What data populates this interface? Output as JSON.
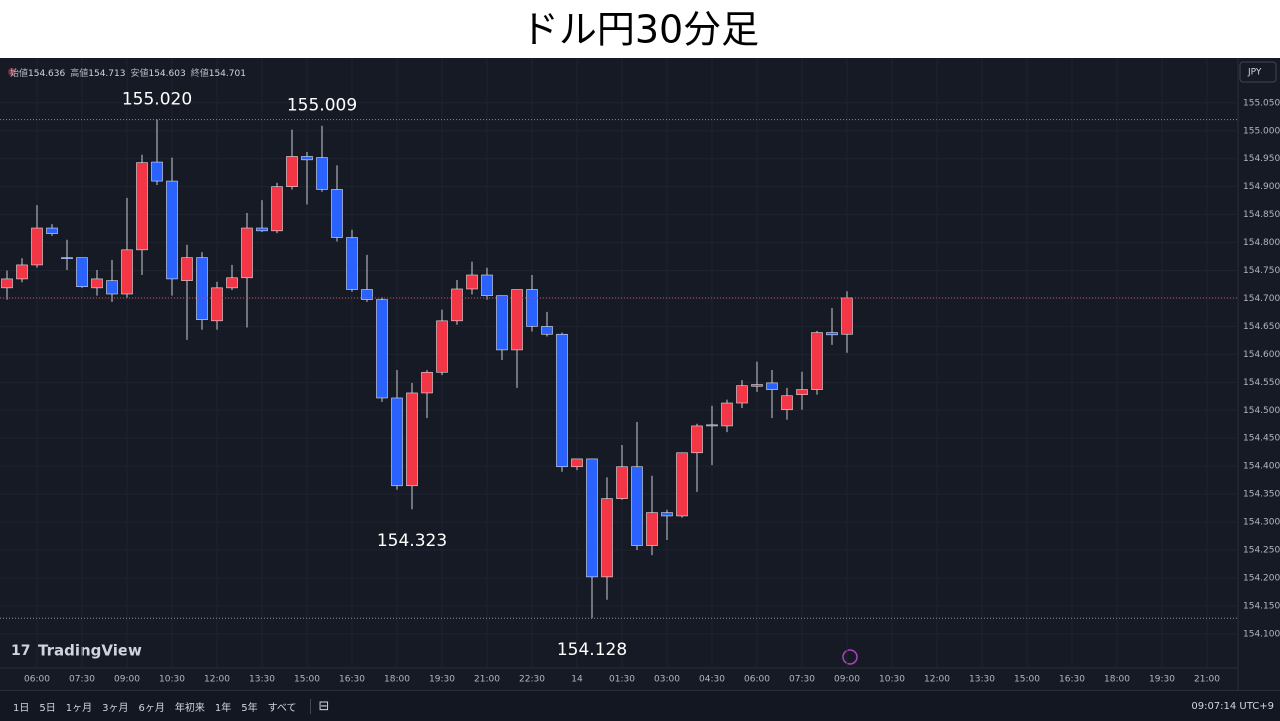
{
  "header": {
    "title": "ドル円30分足"
  },
  "chart_data": {
    "type": "candlestick",
    "ohlc_legend": [
      {
        "label": "始値",
        "value": 154.636
      },
      {
        "label": "高値",
        "value": 154.713
      },
      {
        "label": "安値",
        "value": 154.603
      },
      {
        "label": "終値",
        "value": 154.701
      }
    ],
    "currency": "JPY",
    "categories": [
      null,
      null,
      "06:00",
      null,
      null,
      "07:30",
      null,
      null,
      "09:00",
      null,
      null,
      "10:30",
      null,
      null,
      "12:00",
      null,
      null,
      "13:30",
      null,
      null,
      "15:00",
      null,
      null,
      "16:30",
      null,
      null,
      "18:00",
      null,
      null,
      "19:30",
      null,
      null,
      "21:00",
      null,
      null,
      "22:30",
      null,
      null,
      "14",
      null,
      null,
      "01:30",
      null,
      null,
      "03:00",
      null,
      null,
      "04:30",
      null,
      null,
      "06:00",
      null,
      null,
      "07:30",
      null,
      null,
      "09:00",
      null,
      null,
      "10:30",
      null,
      null,
      "12:00",
      null,
      null,
      "13:30",
      null,
      null,
      "15:00",
      null,
      null,
      "16:30",
      null,
      null,
      "18:00",
      null,
      null,
      "19:30",
      null,
      null,
      "21:00"
    ],
    "open": [
      154.719,
      154.735,
      154.76,
      154.826,
      154.773,
      154.773,
      154.719,
      154.732,
      154.708,
      154.787,
      154.944,
      154.91,
      154.732,
      154.773,
      154.66,
      154.719,
      154.737,
      154.826,
      154.821,
      154.9,
      154.954,
      154.952,
      154.895,
      154.809,
      154.716,
      154.698,
      154.522,
      154.365,
      154.531,
      154.568,
      154.66,
      154.717,
      154.742,
      154.705,
      154.608,
      154.716,
      154.65,
      154.636,
      154.399,
      154.413,
      154.202,
      154.342,
      154.399,
      154.258,
      154.317,
      154.311,
      154.424,
      154.472,
      154.472,
      154.513,
      154.543,
      154.549,
      154.501,
      154.528,
      154.537,
      154.639,
      154.636,
      null,
      null,
      null,
      null,
      null,
      null,
      null,
      null,
      null,
      null,
      null,
      null,
      null,
      null,
      null,
      null,
      null,
      null,
      null,
      null,
      null,
      null,
      null,
      null
    ],
    "high": [
      154.75,
      154.772,
      154.867,
      154.833,
      154.805,
      154.773,
      154.751,
      154.769,
      154.88,
      154.957,
      155.02,
      154.952,
      154.796,
      154.783,
      154.73,
      154.76,
      154.853,
      154.876,
      154.907,
      155.002,
      154.962,
      155.009,
      154.938,
      154.823,
      154.778,
      154.702,
      154.572,
      154.549,
      154.572,
      154.68,
      154.733,
      154.766,
      154.755,
      154.705,
      154.716,
      154.742,
      154.676,
      154.639,
      154.413,
      154.413,
      154.38,
      154.438,
      154.479,
      154.383,
      154.322,
      154.424,
      154.476,
      154.508,
      154.519,
      154.554,
      154.587,
      154.572,
      154.54,
      154.569,
      154.642,
      154.683,
      154.713,
      null,
      null,
      null,
      null,
      null,
      null,
      null,
      null,
      null,
      null,
      null,
      null,
      null,
      null,
      null,
      null,
      null,
      null,
      null,
      null,
      null,
      null,
      null,
      null
    ],
    "low": [
      154.698,
      154.729,
      154.755,
      154.812,
      154.751,
      154.719,
      154.705,
      154.694,
      154.701,
      154.742,
      154.903,
      154.705,
      154.626,
      154.644,
      154.644,
      154.715,
      154.648,
      154.819,
      154.817,
      154.895,
      154.868,
      154.891,
      154.802,
      154.712,
      154.694,
      154.515,
      154.358,
      154.323,
      154.486,
      154.563,
      154.653,
      154.707,
      154.698,
      154.59,
      154.54,
      154.641,
      154.632,
      154.39,
      154.393,
      154.128,
      154.161,
      154.34,
      154.25,
      154.241,
      154.268,
      154.308,
      154.354,
      154.402,
      154.461,
      154.504,
      154.533,
      154.486,
      154.483,
      154.501,
      154.528,
      154.617,
      154.603,
      null,
      null,
      null,
      null,
      null,
      null,
      null,
      null,
      null,
      null,
      null,
      null,
      null,
      null,
      null,
      null,
      null,
      null,
      null,
      null,
      null,
      null,
      null,
      null
    ],
    "close": [
      154.735,
      154.76,
      154.826,
      154.816,
      154.772,
      154.721,
      154.735,
      154.708,
      154.787,
      154.943,
      154.91,
      154.735,
      154.773,
      154.662,
      154.719,
      154.737,
      154.826,
      154.821,
      154.9,
      154.954,
      154.948,
      154.895,
      154.809,
      154.716,
      154.698,
      154.522,
      154.365,
      154.531,
      154.568,
      154.66,
      154.717,
      154.742,
      154.705,
      154.608,
      154.716,
      154.65,
      154.636,
      154.399,
      154.413,
      154.202,
      154.342,
      154.399,
      154.258,
      154.317,
      154.311,
      154.424,
      154.472,
      154.474,
      154.513,
      154.544,
      154.546,
      154.537,
      154.526,
      154.537,
      154.639,
      154.635,
      154.701,
      null,
      null,
      null,
      null,
      null,
      null,
      null,
      null,
      null,
      null,
      null,
      null,
      null,
      null,
      null,
      null,
      null,
      null,
      null,
      null,
      null,
      null,
      null,
      null
    ],
    "up_color": "#f23645",
    "down_color": "#2962ff",
    "wick_color": "#c9ccd4",
    "ylim": [
      154.039,
      155.123
    ],
    "yticks": [
      {
        "value": 155.05,
        "label": "155.050"
      },
      {
        "value": 155.0,
        "label": "155.000"
      },
      {
        "value": 154.95,
        "label": "154.950"
      },
      {
        "value": 154.9,
        "label": "154.900"
      },
      {
        "value": 154.85,
        "label": "154.850"
      },
      {
        "value": 154.8,
        "label": "154.800"
      },
      {
        "value": 154.75,
        "label": "154.750"
      },
      {
        "value": 154.7,
        "label": "154.700"
      },
      {
        "value": 154.65,
        "label": "154.650"
      },
      {
        "value": 154.6,
        "label": "154.600"
      },
      {
        "value": 154.55,
        "label": "154.550"
      },
      {
        "value": 154.5,
        "label": "154.500"
      },
      {
        "value": 154.45,
        "label": "154.450"
      },
      {
        "value": 154.4,
        "label": "154.400"
      },
      {
        "value": 154.35,
        "label": "154.350"
      },
      {
        "value": 154.3,
        "label": "154.300"
      },
      {
        "value": 154.25,
        "label": "154.250"
      },
      {
        "value": 154.2,
        "label": "154.200"
      },
      {
        "value": 154.15,
        "label": "154.150"
      },
      {
        "value": 154.1,
        "label": "154.100"
      }
    ],
    "grid": true,
    "annotations": [
      {
        "value": 155.02,
        "label": "155.020"
      },
      {
        "value": 155.009,
        "label": "155.009"
      },
      {
        "value": 154.323,
        "label": "154.323"
      },
      {
        "value": 154.128,
        "label": "154.128"
      }
    ],
    "logo": "TradingView"
  },
  "toolbar": {
    "ranges": [
      "1日",
      "5日",
      "1ヶ月",
      "3ヶ月",
      "6ヶ月",
      "年初来",
      "1年",
      "5年",
      "すべて"
    ],
    "clock": "09:07:14 UTC+9"
  }
}
